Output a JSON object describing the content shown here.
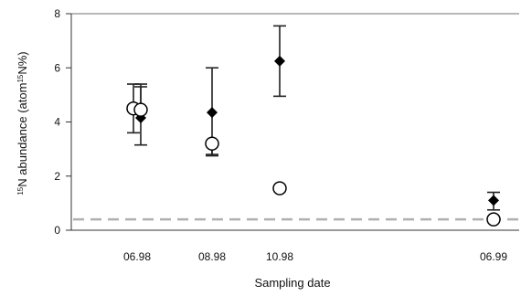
{
  "chart_data": {
    "type": "scatter",
    "title": "",
    "xlabel": "Sampling date",
    "ylabel_parts": [
      {
        "text": "15",
        "sup": true
      },
      {
        "text": "N abundance (atom",
        "sup": false
      },
      {
        "text": "15",
        "sup": true
      },
      {
        "text": "N%)",
        "sup": false
      }
    ],
    "categories": [
      "06.98",
      "08.98",
      "10.98",
      "06.99"
    ],
    "ylim": [
      0,
      8
    ],
    "yticks": [
      "0",
      "2",
      "4",
      "6",
      "8"
    ],
    "reference_line": {
      "y": 0.4,
      "style": "dashed",
      "color": "#b0b0b0"
    },
    "series": [
      {
        "marker": "filled-diamond",
        "color": "#000000",
        "points": [
          {
            "x": "06.98",
            "y": 4.15,
            "err_low": 3.15,
            "err_high": 5.4
          },
          {
            "x": "08.98",
            "y": 4.35,
            "err_low": 2.75,
            "err_high": 6.0
          },
          {
            "x": "10.98",
            "y": 6.25,
            "err_low": 4.95,
            "err_high": 7.55
          },
          {
            "x": "06.99",
            "y": 1.1,
            "err_low": 0.75,
            "err_high": 1.4
          }
        ]
      },
      {
        "marker": "open-circle",
        "color": "#000000",
        "points": [
          {
            "x": "06.98",
            "y": 4.5,
            "err_low": 3.6,
            "err_high": 5.4
          },
          {
            "x": "06.98",
            "y": 4.45,
            "err_low": null,
            "err_high": 5.3
          },
          {
            "x": "08.98",
            "y": 3.2,
            "err_low": 2.8,
            "err_high": null
          },
          {
            "x": "10.98",
            "y": 1.55,
            "err_low": null,
            "err_high": null
          },
          {
            "x": "06.99",
            "y": 0.4,
            "err_low": null,
            "err_high": null
          }
        ]
      }
    ]
  }
}
